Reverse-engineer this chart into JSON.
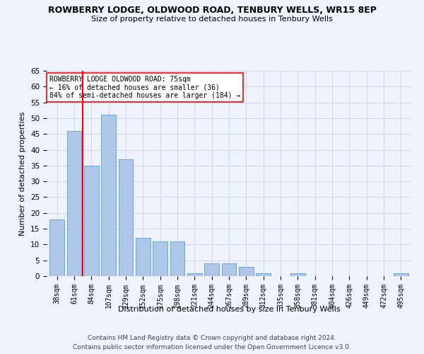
{
  "title": "ROWBERRY LODGE, OLDWOOD ROAD, TENBURY WELLS, WR15 8EP",
  "subtitle": "Size of property relative to detached houses in Tenbury Wells",
  "xlabel": "Distribution of detached houses by size in Tenbury Wells",
  "ylabel": "Number of detached properties",
  "categories": [
    "38sqm",
    "61sqm",
    "84sqm",
    "107sqm",
    "129sqm",
    "152sqm",
    "175sqm",
    "198sqm",
    "221sqm",
    "244sqm",
    "267sqm",
    "289sqm",
    "312sqm",
    "335sqm",
    "358sqm",
    "381sqm",
    "404sqm",
    "426sqm",
    "449sqm",
    "472sqm",
    "495sqm"
  ],
  "values": [
    18,
    46,
    35,
    51,
    37,
    12,
    11,
    11,
    1,
    4,
    4,
    3,
    1,
    0,
    1,
    0,
    0,
    0,
    0,
    0,
    1
  ],
  "bar_color": "#aec6e8",
  "bar_edge_color": "#5a9fd4",
  "red_line_x": 1.5,
  "annotation_title": "ROWBERRY LODGE OLDWOOD ROAD: 75sqm",
  "annotation_line1": "← 16% of detached houses are smaller (36)",
  "annotation_line2": "84% of semi-detached houses are larger (184) →",
  "ylim": [
    0,
    65
  ],
  "yticks": [
    0,
    5,
    10,
    15,
    20,
    25,
    30,
    35,
    40,
    45,
    50,
    55,
    60,
    65
  ],
  "footer1": "Contains HM Land Registry data © Crown copyright and database right 2024.",
  "footer2": "Contains public sector information licensed under the Open Government Licence v3.0.",
  "bg_color": "#eef2fa",
  "grid_color": "#c8d4e8"
}
